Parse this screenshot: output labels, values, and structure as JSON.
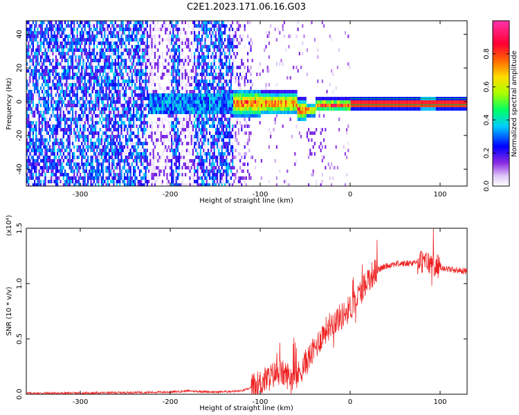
{
  "figure": {
    "title": "C2E1.2023.171.06.16.G03"
  },
  "chart_data": [
    {
      "type": "heatmap",
      "xlabel": "Height of straight line (km)",
      "ylabel": "Frequency (Hz)",
      "xlim": [
        -360,
        130
      ],
      "ylim": [
        -50,
        48
      ],
      "x_ticks": [
        -300,
        -200,
        -100,
        0,
        100
      ],
      "y_ticks": [
        -40,
        -20,
        0,
        20,
        40
      ],
      "colorbar": {
        "label": "Normalized spectral amplitude",
        "range": [
          0,
          1
        ],
        "ticks": [
          0.0,
          0.2,
          0.4,
          0.6,
          0.8
        ],
        "colors": [
          "#ffffff",
          "#e0c8f8",
          "#8a2be2",
          "#4400ee",
          "#0000ff",
          "#00ccff",
          "#00ff66",
          "#aaff00",
          "#ffdd00",
          "#ff6600",
          "#ff0033",
          "#ff33aa"
        ]
      },
      "features": {
        "noise_region_x": [
          -360,
          -130
        ],
        "noise_amplitude": 0.35,
        "bright_band_x": [
          -130,
          0
        ],
        "bright_band_center_hz": 0,
        "line_x": [
          0,
          130
        ],
        "line_center_hz": 0,
        "line_amplitude": 0.9
      }
    },
    {
      "type": "line",
      "xlabel": "Height of straight line (km)",
      "ylabel": "SNR (10 * v/v)",
      "y_multiplier": "(x10⁴)",
      "xlim": [
        -360,
        130
      ],
      "ylim": [
        0,
        1.5
      ],
      "x_ticks": [
        -300,
        -200,
        -100,
        0,
        100
      ],
      "y_ticks": [
        0.0,
        0.5,
        1.0,
        1.5
      ],
      "series": [
        {
          "color": "#ee2222",
          "x": [
            -360,
            -300,
            -250,
            -200,
            -180,
            -150,
            -120,
            -110,
            -100,
            -90,
            -80,
            -70,
            -60,
            -50,
            -40,
            -30,
            -20,
            -10,
            0,
            10,
            20,
            30,
            40,
            50,
            60,
            70,
            80,
            90,
            100,
            110,
            120,
            130
          ],
          "y": [
            0.01,
            0.01,
            0.015,
            0.02,
            0.03,
            0.02,
            0.03,
            0.06,
            0.1,
            0.15,
            0.2,
            0.17,
            0.15,
            0.28,
            0.4,
            0.55,
            0.65,
            0.7,
            0.78,
            0.9,
            1.05,
            1.12,
            1.16,
            1.18,
            1.18,
            1.19,
            1.2,
            1.18,
            1.15,
            1.13,
            1.12,
            1.11
          ]
        }
      ]
    }
  ]
}
